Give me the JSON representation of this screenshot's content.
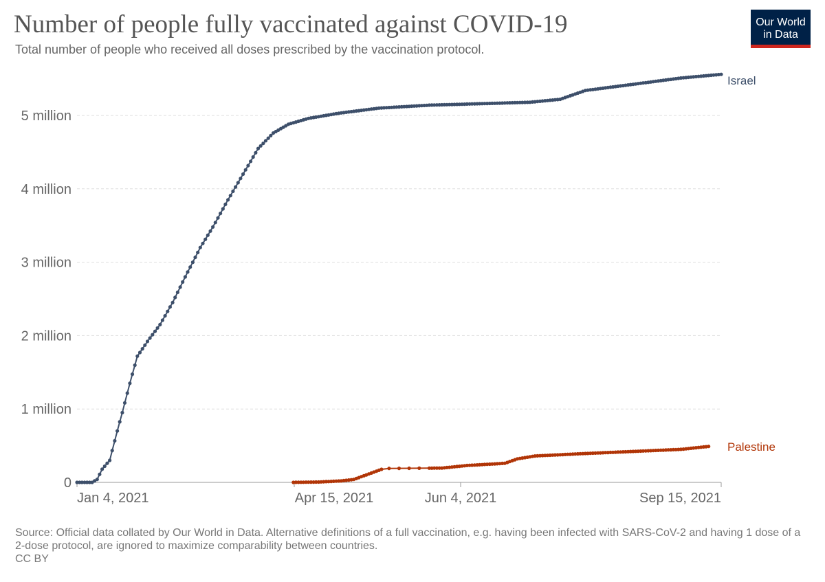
{
  "header": {
    "title": "Number of people fully vaccinated against COVID-19",
    "subtitle": "Total number of people who received all doses prescribed by the vaccination protocol."
  },
  "logo": {
    "line1": "Our World",
    "line2": "in Data",
    "bg": "#002147",
    "accent": "#ce261e"
  },
  "footer": {
    "source": "Source: Official data collated by Our World in Data. Alternative definitions of a full vaccination, e.g. having been infected with SARS-CoV-2 and having 1 dose of a 2-dose protocol, are ignored to maximize comparability between countries.",
    "license": "CC BY"
  },
  "chart_data": {
    "type": "line",
    "title": "Number of people fully vaccinated against COVID-19",
    "xlabel": "",
    "ylabel": "",
    "x_range_days": [
      0,
      256
    ],
    "x_ticks": [
      {
        "day": 3,
        "label": "Jan 4, 2021"
      },
      {
        "day": 104,
        "label": "Apr 15, 2021"
      },
      {
        "day": 154,
        "label": "Jun 4, 2021"
      },
      {
        "day": 257,
        "label": "Sep 15, 2021"
      }
    ],
    "ylim": [
      0,
      5700000
    ],
    "y_ticks": [
      {
        "value": 0,
        "label": "0"
      },
      {
        "value": 1000000,
        "label": "1 million"
      },
      {
        "value": 2000000,
        "label": "2 million"
      },
      {
        "value": 3000000,
        "label": "3 million"
      },
      {
        "value": 4000000,
        "label": "4 million"
      },
      {
        "value": 5000000,
        "label": "5 million"
      }
    ],
    "grid": true,
    "series": [
      {
        "name": "Israel",
        "color": "#3d4f6a",
        "start_day": 0,
        "end_day": 256,
        "keypoints": [
          [
            0,
            0
          ],
          [
            6,
            0
          ],
          [
            8,
            40000
          ],
          [
            10,
            180000
          ],
          [
            13,
            300000
          ],
          [
            16,
            700000
          ],
          [
            18,
            950000
          ],
          [
            21,
            1350000
          ],
          [
            24,
            1720000
          ],
          [
            28,
            1920000
          ],
          [
            33,
            2150000
          ],
          [
            38,
            2450000
          ],
          [
            43,
            2800000
          ],
          [
            49,
            3200000
          ],
          [
            54,
            3480000
          ],
          [
            60,
            3850000
          ],
          [
            66,
            4200000
          ],
          [
            72,
            4550000
          ],
          [
            78,
            4760000
          ],
          [
            84,
            4880000
          ],
          [
            92,
            4960000
          ],
          [
            104,
            5030000
          ],
          [
            120,
            5100000
          ],
          [
            140,
            5140000
          ],
          [
            160,
            5160000
          ],
          [
            180,
            5180000
          ],
          [
            192,
            5220000
          ],
          [
            202,
            5340000
          ],
          [
            220,
            5420000
          ],
          [
            240,
            5510000
          ],
          [
            256,
            5560000
          ]
        ]
      },
      {
        "name": "Palestine",
        "color": "#b13507",
        "start_day": 86,
        "end_day": 251,
        "keypoints": [
          [
            86,
            0
          ],
          [
            96,
            5000
          ],
          [
            105,
            20000
          ],
          [
            110,
            40000
          ],
          [
            122,
            190000
          ],
          [
            145,
            195000
          ],
          [
            155,
            230000
          ],
          [
            170,
            260000
          ],
          [
            175,
            320000
          ],
          [
            182,
            360000
          ],
          [
            200,
            390000
          ],
          [
            220,
            420000
          ],
          [
            240,
            450000
          ],
          [
            251,
            490000
          ]
        ],
        "gap": [
          121,
          141
        ]
      }
    ]
  }
}
